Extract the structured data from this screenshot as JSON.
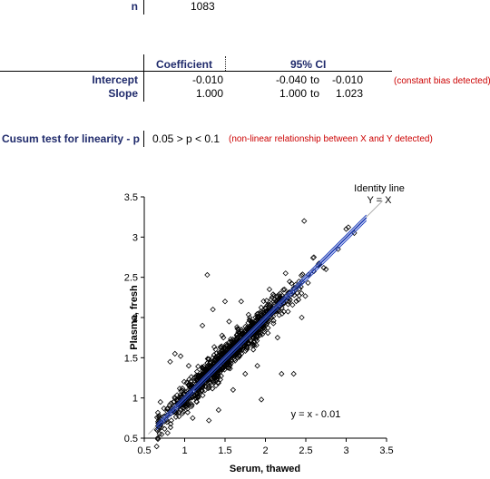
{
  "stats": {
    "n_label": "n",
    "n_value": "1083",
    "col_coefficient": "Coefficient",
    "col_ci": "95% CI",
    "rows": [
      {
        "label": "Intercept",
        "coef": "-0.010",
        "ci_low": "-0.040",
        "ci_to": "to",
        "ci_high": "-0.010",
        "note": "(constant bias detected)"
      },
      {
        "label": "Slope",
        "coef": "1.000",
        "ci_low": "1.000",
        "ci_to": "to",
        "ci_high": "1.023",
        "note": ""
      }
    ],
    "cusum_label": "Cusum test for linearity - p",
    "cusum_value": "0.05 > p < 0.1",
    "cusum_note": "(non-linear relationship between X and Y detected)"
  },
  "colors": {
    "label_navy": "#1f2a6b",
    "note_red": "#cc0000",
    "regression_line": "#1f3fbf",
    "identity_line": "#aaaaaa"
  },
  "chart_data": {
    "type": "scatter",
    "xlabel": "Serum, thawed",
    "ylabel": "Plasma, fresh",
    "xlim": [
      0.5,
      3.5
    ],
    "ylim": [
      0.5,
      3.5
    ],
    "xticks": [
      "0.5",
      "1",
      "1.5",
      "2",
      "2.5",
      "3",
      "3.5"
    ],
    "yticks": [
      "0.5",
      "1",
      "1.5",
      "2",
      "2.5",
      "3",
      "3.5"
    ],
    "identity_label_1": "Identity line",
    "identity_label_2": "Y = X",
    "equation": "y = x - 0.01",
    "regression": {
      "slope": 1.0,
      "intercept": -0.01,
      "x_range": [
        0.65,
        3.25
      ]
    },
    "identity": {
      "x_range": [
        0.55,
        3.45
      ]
    },
    "outliers": [
      [
        1.28,
        2.53
      ],
      [
        2.48,
        3.2
      ],
      [
        1.22,
        1.9
      ],
      [
        1.35,
        2.1
      ],
      [
        0.88,
        1.55
      ],
      [
        0.82,
        1.45
      ],
      [
        0.95,
        1.52
      ],
      [
        1.3,
        0.72
      ],
      [
        1.6,
        1.1
      ],
      [
        1.75,
        1.3
      ],
      [
        2.2,
        1.3
      ],
      [
        2.35,
        1.3
      ],
      [
        1.95,
        0.98
      ],
      [
        1.42,
        0.85
      ],
      [
        1.1,
        0.75
      ],
      [
        0.78,
        0.7
      ],
      [
        2.65,
        2.65
      ],
      [
        2.9,
        2.85
      ],
      [
        3.1,
        3.05
      ],
      [
        3.0,
        3.1
      ],
      [
        1.55,
        1.95
      ],
      [
        1.7,
        2.2
      ],
      [
        2.05,
        2.35
      ],
      [
        2.25,
        2.55
      ],
      [
        2.15,
        1.75
      ],
      [
        1.85,
        1.6
      ],
      [
        1.9,
        1.4
      ],
      [
        1.48,
        1.75
      ],
      [
        1.05,
        1.4
      ],
      [
        1.15,
        0.95
      ],
      [
        2.75,
        2.6
      ],
      [
        2.6,
        2.75
      ],
      [
        1.5,
        2.2
      ],
      [
        0.7,
        0.95
      ],
      [
        2.45,
        2.0
      ]
    ],
    "scatter_model": {
      "count": 1083,
      "x_mean": 1.55,
      "x_sd": 0.42,
      "x_min": 0.65,
      "x_max": 3.25,
      "resid_sd": 0.085
    }
  }
}
